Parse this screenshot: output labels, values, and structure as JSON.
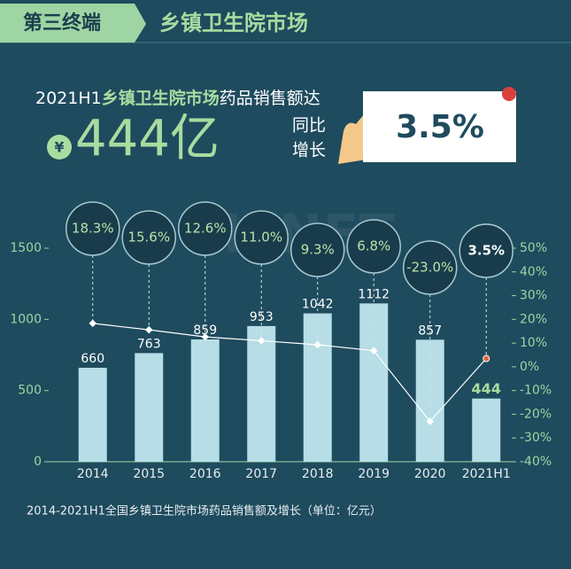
{
  "header": {
    "tag": "第三终端",
    "title": "乡镇卫生院市场"
  },
  "headline": {
    "prefix": "2021H1",
    "highlight": "乡镇卫生院市场",
    "suffix": "药品销售额达",
    "currency": "¥",
    "amount": "444亿",
    "growth_label_1": "同比",
    "growth_label_2": "增长",
    "growth": "3.5%"
  },
  "watermark": "MENET",
  "chart_data": {
    "type": "bar",
    "categories": [
      "2014",
      "2015",
      "2016",
      "2017",
      "2018",
      "2019",
      "2020",
      "2021H1"
    ],
    "series": [
      {
        "type": "bar",
        "color": "#b7dde6",
        "values": [
          660,
          763,
          859,
          953,
          1042,
          1112,
          857,
          444
        ]
      },
      {
        "type": "line",
        "axis": "y2",
        "color": "#ffffff",
        "values": [
          18.3,
          15.6,
          12.6,
          11.0,
          9.3,
          6.8,
          -23.0,
          3.5
        ],
        "value_labels": [
          "18.3%",
          "15.6%",
          "12.6%",
          "11.0%",
          "9.3%",
          "6.8%",
          "-23.0%",
          "3.5%"
        ]
      }
    ],
    "ylim": [
      0,
      1500
    ],
    "yticks": [
      0,
      500,
      1000,
      1500
    ],
    "y2lim": [
      -40,
      50
    ],
    "y2ticks": [
      {
        "value": 50,
        "label": "50%"
      },
      {
        "value": 40,
        "label": "40%"
      },
      {
        "value": 30,
        "label": "30%"
      },
      {
        "value": 20,
        "label": "20%"
      },
      {
        "value": 10,
        "label": "10%"
      },
      {
        "value": 0,
        "label": "0%"
      },
      {
        "value": -10,
        "label": "-10%"
      },
      {
        "value": -20,
        "label": "-20%"
      },
      {
        "value": -30,
        "label": "-30%"
      },
      {
        "value": -40,
        "label": "-40%"
      }
    ],
    "caption": "2014-2021H1全国乡镇卫生院市场药品销售额及增长（单位：亿元）"
  }
}
